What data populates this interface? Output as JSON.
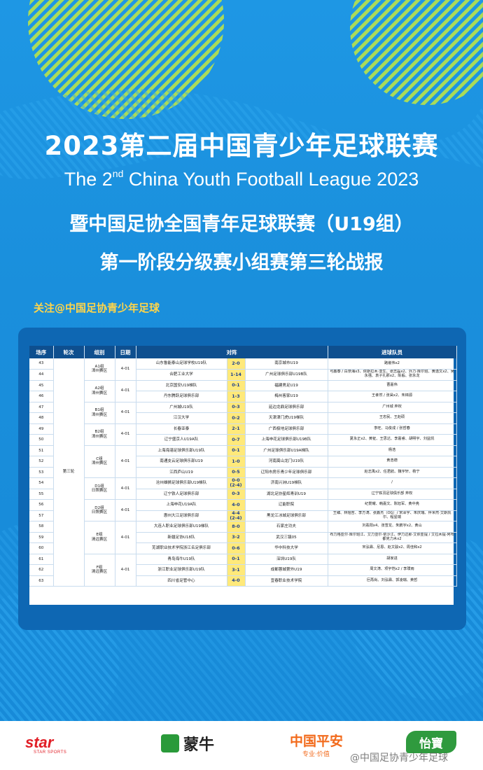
{
  "header": {
    "title_cn": "2023第二届中国青少年足球联赛",
    "title_en_pre": "The 2",
    "title_en_sup": "nd",
    "title_en_post": " China Youth Football League 2023",
    "subtitle1": "暨中国足协全国青年足球联赛（U19组）",
    "subtitle2": "第一阶段分级赛小组赛第三轮战报",
    "follow": "关注@中国足协青少年足球"
  },
  "table": {
    "headers": [
      "场序",
      "轮次",
      "组别",
      "日期",
      "对阵",
      "进球队员"
    ],
    "round": "第三轮",
    "rows": [
      {
        "no": "43",
        "home": "山东鲁能泰山足球学校U19队",
        "score": "2-0",
        "away": "南京城市U19",
        "scorers": "路嵌伟x2"
      },
      {
        "no": "44",
        "home": "合肥工业大学",
        "score": "1-14",
        "away": "广州足球俱乐部U19B队",
        "scorers": "弓鑫泰 / 白奈海x3、依斯拉木·亚生、张志磊x2、外力·库尔班、黄逸文x2、吴永强、袁子扎那x2、陈般、张永龙"
      },
      {
        "no": "45",
        "home": "北京国安U19梯队",
        "score": "0-1",
        "away": "福建男足U19",
        "scorers": "曹嘉伟"
      },
      {
        "no": "46",
        "home": "丹东腾跃足球俱乐部",
        "score": "1-3",
        "away": "梅州客家U19",
        "scorers": "王孝然 / 张昊x2、朱锦源"
      },
      {
        "no": "47",
        "home": "广州城U19队",
        "score": "0-3",
        "away": "延边龙鼎足球俱乐部",
        "scorers": "广州城 弃权"
      },
      {
        "no": "48",
        "home": "江汉大学",
        "score": "0-2",
        "away": "天津津门虎U19梯队",
        "scorers": "王忠民、王赵硕"
      },
      {
        "no": "49",
        "home": "长春亚泰",
        "score": "2-1",
        "away": "广西极地足球俱乐部",
        "scorers": "李旺、马俊成 / 张哲春"
      },
      {
        "no": "50",
        "home": "辽宁盛京人U19A队",
        "score": "0-7",
        "away": "上海申花足球俱乐部U19B队",
        "scorers": "夏永正x2、黄钲、王思达、李嘉睿、胡明宇、刘益凯"
      },
      {
        "no": "51",
        "home": "上海海港足球俱乐部U19队",
        "score": "0-1",
        "away": "广州足球俱乐部U19A梯队",
        "scorers": "杨浩"
      },
      {
        "no": "52",
        "home": "南通支云足球俱乐部U19",
        "score": "1-0",
        "away": "河南嵩山龙门U19队",
        "scorers": "黄浩德"
      },
      {
        "no": "53",
        "home": "江西庐山U19",
        "score": "0-5",
        "away": "辽阳市房乐青少年足球俱乐部",
        "scorers": "赵志禹x2、任君航、魏宇轩、杨宁"
      },
      {
        "no": "54",
        "home": "沧州雄狮足球俱乐部U19梯队",
        "score": "0-0",
        "pen": "(2-4)",
        "away": "济南兴洲U19梯队",
        "scorers": "/"
      },
      {
        "no": "55",
        "home": "辽宁铁人足球俱乐部",
        "score": "0-3",
        "away": "湖北足协星辉青训U19",
        "scorers": "辽宁铁羽足球俱乐部 弃权"
      },
      {
        "no": "56",
        "home": "上海申花U19A队",
        "score": "4-0",
        "away": "辽能职院",
        "scorers": "纪景耀、韩嘉文、陈旭军、黄中亮"
      },
      {
        "no": "57",
        "home": "惠州大江足球俱乐部",
        "score": "4-4",
        "pen": "(2-4)",
        "away": "黑龙江冰城足球俱乐部",
        "scorers": "王臻、林煜哲、李方涛、张鑫杰（OG）/ 宋泽宇、朱庆瑞、伴米然·艾斯凯尔、程星瑞"
      },
      {
        "no": "58",
        "home": "大连人职业足球俱乐部U19梯队",
        "score": "8-0",
        "away": "石家庄功夫",
        "scorers": "刘翡阳x4、张雪龙、朱鹏宇x2、黄山"
      },
      {
        "no": "59",
        "home": "新疆足协U18队",
        "score": "3-2",
        "away": "武汉三镇05",
        "scorers": "布力格亚尔·库尔班江、艾力亚尔·依沙江、伊力达那·艾依亚提 / 艾拉木提·阿布都克力木x2"
      },
      {
        "no": "60",
        "home": "芜湖职业技术学院浙江名足俱乐部",
        "score": "0-6",
        "away": "华中科技大学",
        "scorers": "宋泓霖、尼恩、赵文骏x2、周佳和x2"
      },
      {
        "no": "61",
        "home": "青岛海牛U19队",
        "score": "0-1",
        "away": "深圳U19队",
        "scorers": "胡家进"
      },
      {
        "no": "62",
        "home": "浙江职业足球俱乐部U19队",
        "score": "3-1",
        "away": "成都蓉城第外U19",
        "scorers": "周文涛、项宇恺x2 / 李璞雨"
      },
      {
        "no": "63",
        "home": "四川省足管中心",
        "score": "4-0",
        "away": "宜春职业技术学院",
        "scorers": "巨再尚、刘泓霖、郭凌瑞、黄哲"
      }
    ],
    "groups": [
      {
        "name": "A1组",
        "venue": "漳州赛区",
        "date": "4-01"
      },
      {
        "name": "A2组",
        "venue": "漳州赛区",
        "date": "4-01"
      },
      {
        "name": "B1组",
        "venue": "漳州赛区",
        "date": "4-01"
      },
      {
        "name": "B2组",
        "venue": "漳州赛区",
        "date": "4-01"
      },
      {
        "name": "C组",
        "venue": "漳州赛区",
        "date": "4-01"
      },
      {
        "name": "D1组",
        "venue": "日照赛区",
        "date": "4-01"
      },
      {
        "name": "D2组",
        "venue": "日照赛区",
        "date": "4-01"
      },
      {
        "name": "E组",
        "venue": "清远赛区",
        "date": "4-01"
      },
      {
        "name": "F组",
        "venue": "清远赛区",
        "date": "4-01"
      }
    ]
  },
  "sponsors": {
    "star": "star",
    "star_sub": "STAR SPORTS",
    "mengniu": "蒙牛",
    "pingan": "中国平安",
    "pingan_sub": "专业·价值",
    "yibao": "怡寶"
  },
  "watermark": "@中国足协青少年足球",
  "colors": {
    "bg": "#1a8fdc",
    "panel": "#0e67b3",
    "score": "#ffe97a",
    "header": "#0e4f8f",
    "accent": "#ffd54a"
  }
}
